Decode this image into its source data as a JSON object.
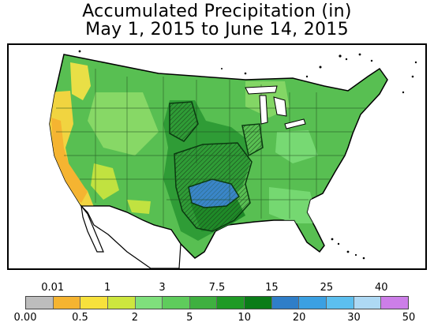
{
  "title": {
    "line1": "Accumulated Precipitation (in)",
    "line2": "May 1, 2015 to June 14, 2015"
  },
  "legend": {
    "top_labels": [
      "0.01",
      "1",
      "3",
      "7.5",
      "15",
      "25",
      "40"
    ],
    "bottom_labels": [
      "0.00",
      "0.5",
      "2",
      "5",
      "10",
      "20",
      "30",
      "50"
    ],
    "colors": [
      "#bdbdbd",
      "#f5b431",
      "#f7e13c",
      "#cde63e",
      "#7fe07c",
      "#5fcc5c",
      "#3fb040",
      "#1f9a25",
      "#0a7c18",
      "#2f7ec8",
      "#3ba0e2",
      "#5cbfef",
      "#aed9f4",
      "#cc7ee8"
    ]
  },
  "colors": {
    "land_base": "#58bf52",
    "dry_orange": "#f5b431",
    "dry_yellow": "#f1d440",
    "light_green": "#8fdc6a",
    "dark_green": "#2f9c36",
    "wettest_blue": "#3a86c8"
  }
}
